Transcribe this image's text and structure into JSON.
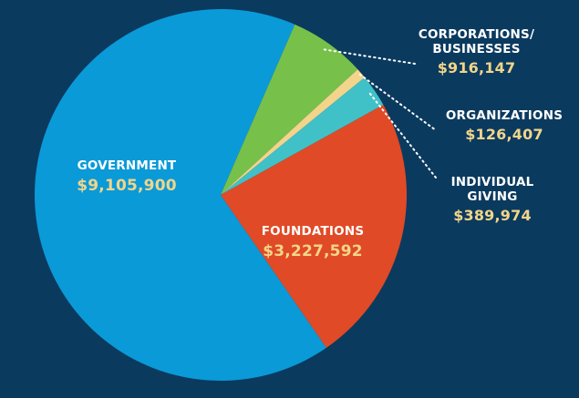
{
  "colors": {
    "background": "#0b3a5f",
    "name_text": "#ffffff",
    "amount_text": "#f2d58a",
    "leader": "#ffffff"
  },
  "chart_data": {
    "type": "pie",
    "title": "",
    "slices": [
      {
        "label": "GOVERNMENT",
        "value": 9105900,
        "display": "$9,105,900",
        "color": "#0a9ad8"
      },
      {
        "label": "CORPORATIONS/ BUSINESSES",
        "value": 916147,
        "display": "$916,147",
        "color": "#77c14a"
      },
      {
        "label": "ORGANIZATIONS",
        "value": 126407,
        "display": "$126,407",
        "color": "#f2d48a"
      },
      {
        "label": "INDIVIDUAL GIVING",
        "value": 389974,
        "display": "$389,974",
        "color": "#40c1c8"
      },
      {
        "label": "FOUNDATIONS",
        "value": 3227592,
        "display": "$3,227,592",
        "color": "#e14a26"
      }
    ],
    "legend": "none"
  },
  "labels": {
    "government": {
      "name": "GOVERNMENT",
      "amount": "$9,105,900"
    },
    "corporations": {
      "name_line1": "CORPORATIONS/",
      "name_line2": "BUSINESSES",
      "amount": "$916,147"
    },
    "organizations": {
      "name": "ORGANIZATIONS",
      "amount": "$126,407"
    },
    "individual": {
      "name_line1": "INDIVIDUAL",
      "name_line2": "GIVING",
      "amount": "$389,974"
    },
    "foundations": {
      "name": "FOUNDATIONS",
      "amount": "$3,227,592"
    }
  }
}
